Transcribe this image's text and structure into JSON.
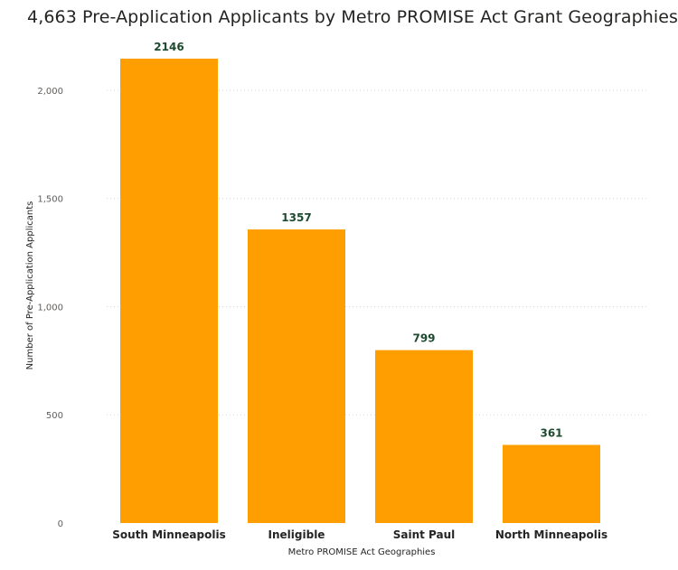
{
  "chart_data": {
    "type": "bar",
    "title": "4,663 Pre-Application Applicants by Metro PROMISE Act Grant Geographies",
    "xlabel": "Metro PROMISE Act Geographies",
    "ylabel": "Number of Pre-Application Applicants",
    "categories": [
      "South Minneapolis",
      "Ineligible",
      "Saint Paul",
      "North Minneapolis"
    ],
    "values": [
      2146,
      1357,
      799,
      361
    ],
    "ylim": [
      0,
      2250
    ],
    "yticks": [
      0,
      500,
      1000,
      1500,
      2000
    ],
    "ytick_labels": [
      "0",
      "500",
      "1,000",
      "1,500",
      "2,000"
    ],
    "data_labels": [
      "2146",
      "1357",
      "799",
      "361"
    ],
    "grid": true,
    "legend": "none",
    "colors": {
      "bar": "#FF9E00",
      "data_label": "#1E4A2F",
      "gridline": "#D6D6D6"
    }
  }
}
